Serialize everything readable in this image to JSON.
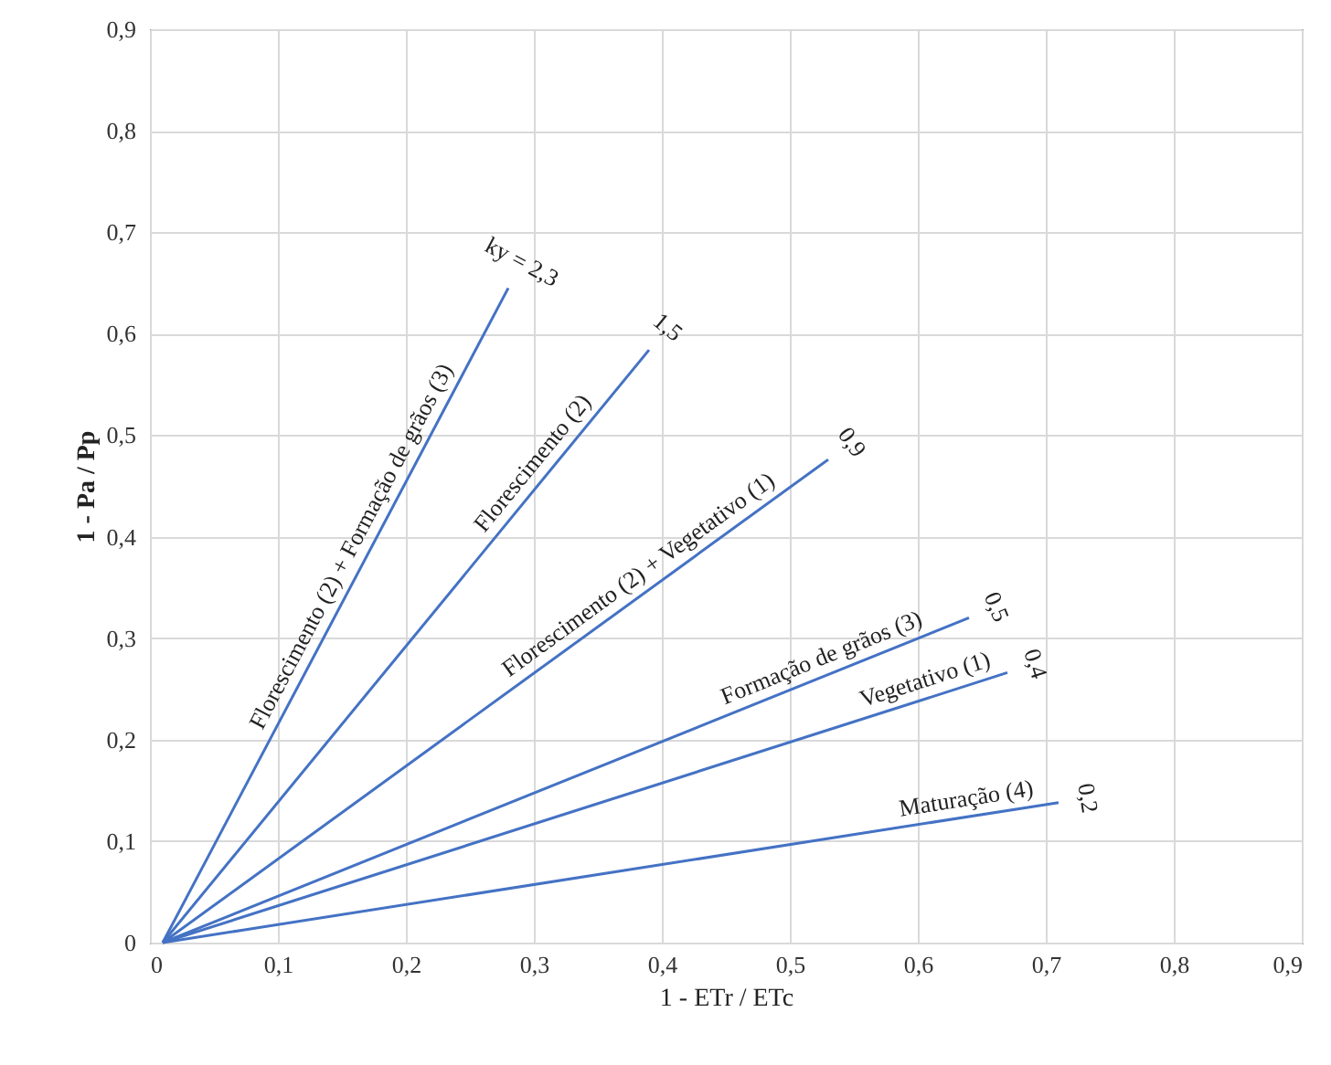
{
  "chart_data": {
    "type": "line",
    "xlabel": "1 - ETr / ETc",
    "ylabel": "1 - Pa / Pp",
    "xlim": [
      0,
      0.9
    ],
    "ylim": [
      0,
      0.9
    ],
    "xticks": [
      0,
      {
        "value": 0.1,
        "label": "0,1"
      },
      {
        "value": 0.2,
        "label": "0,2"
      },
      {
        "value": 0.3,
        "label": "0,3"
      },
      {
        "value": 0.4,
        "label": "0,4"
      },
      {
        "value": 0.5,
        "label": "0,5"
      },
      {
        "value": 0.6,
        "label": "0,6"
      },
      {
        "value": 0.7,
        "label": "0,7"
      },
      {
        "value": 0.8,
        "label": "0,8"
      },
      {
        "value": 0.9,
        "label": "0,9"
      }
    ],
    "yticks": [
      0,
      {
        "value": 0.1,
        "label": "0,1"
      },
      {
        "value": 0.2,
        "label": "0,2"
      },
      {
        "value": 0.3,
        "label": "0,3"
      },
      {
        "value": 0.4,
        "label": "0,4"
      },
      {
        "value": 0.5,
        "label": "0,5"
      },
      {
        "value": 0.6,
        "label": "0,6"
      },
      {
        "value": 0.7,
        "label": "0,7"
      },
      {
        "value": 0.8,
        "label": "0,8"
      },
      {
        "value": 0.9,
        "label": "0,9"
      }
    ],
    "grid": true,
    "line_style": "solid",
    "marker": "none",
    "series": [
      {
        "color": "#4472c4",
        "x": [
          0.01,
          0.28
        ],
        "values": [
          0,
          0.645
        ]
      },
      {
        "color": "#4472c4",
        "x": [
          0.01,
          0.39
        ],
        "values": [
          0,
          0.584
        ]
      },
      {
        "color": "#4472c4",
        "x": [
          0.01,
          0.53
        ],
        "values": [
          0,
          0.476
        ]
      },
      {
        "color": "#4472c4",
        "x": [
          0.01,
          0.64
        ],
        "values": [
          0,
          0.32
        ]
      },
      {
        "color": "#4472c4",
        "x": [
          0.01,
          0.67
        ],
        "values": [
          0,
          0.266
        ]
      },
      {
        "color": "#4472c4",
        "x": [
          0.01,
          0.71
        ],
        "values": [
          0,
          0.138
        ]
      }
    ],
    "annotations": [
      {
        "text": "ky = 2,3",
        "x": 0.28,
        "y": 0.645
      },
      {
        "text": "1,5",
        "x": 0.39,
        "y": 0.584
      },
      {
        "text": "0,9",
        "x": 0.53,
        "y": 0.476
      },
      {
        "text": "0,5",
        "x": 0.64,
        "y": 0.32
      },
      {
        "text": "0,4",
        "x": 0.67,
        "y": 0.266
      },
      {
        "text": "0,2",
        "x": 0.71,
        "y": 0.138
      },
      {
        "text": "Florescimento (2) + Formação de grãos (3)",
        "x": 0.17,
        "y": 0.382
      },
      {
        "text": "Florescimento (2)",
        "x": 0.31,
        "y": 0.461
      },
      {
        "text": "Florescimento (2) + Vegetativo (1)",
        "x": 0.39,
        "y": 0.348
      },
      {
        "text": "Formação de grãos (3)",
        "x": 0.53,
        "y": 0.264
      },
      {
        "text": "Vegetativo (1)",
        "x": 0.61,
        "y": 0.242
      },
      {
        "text": "Maturação (4)",
        "x": 0.64,
        "y": 0.124
      }
    ]
  }
}
